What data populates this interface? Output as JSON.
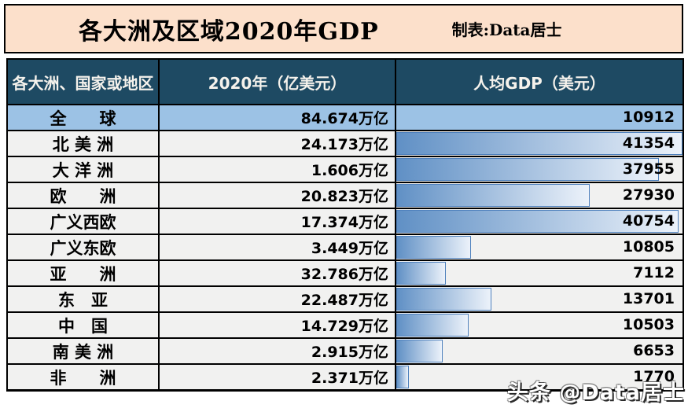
{
  "banner": {
    "title": "各大洲及区域2020年GDP",
    "credit": "制表:Data居士"
  },
  "watermark": "头条 @Data居士",
  "colors": {
    "banner_bg": "#FCE0CB",
    "table_header_bg": "#1E4A63",
    "table_header_text": "#F5F2EC",
    "row_bg": "#F1F1F0",
    "highlight_row_bg": "#9CC2E5",
    "bar_gradient_start": "#6090C5",
    "bar_gradient_end": "#ECF2FA",
    "bar_border": "#4F81BD"
  },
  "chart_data": {
    "type": "table",
    "title": "各大洲及区域2020年GDP",
    "columns": [
      "各大洲、国家或地区",
      "2020年（亿美元）",
      "人均GDP（美元）"
    ],
    "bar_column": "人均GDP（美元）",
    "bar_max": 41354,
    "rows": [
      {
        "region": "全球",
        "region_display": "全　　球",
        "gdp": "84.674万亿",
        "per_capita": 10912,
        "highlight": true,
        "show_bar": false
      },
      {
        "region": "北美洲",
        "region_display": "北 美 洲",
        "gdp": "24.173万亿",
        "per_capita": 41354,
        "highlight": false,
        "show_bar": true
      },
      {
        "region": "大洋洲",
        "region_display": "大 洋 洲",
        "gdp": "1.606万亿",
        "per_capita": 37955,
        "highlight": false,
        "show_bar": true
      },
      {
        "region": "欧洲",
        "region_display": "欧　　洲",
        "gdp": "20.823万亿",
        "per_capita": 27930,
        "highlight": false,
        "show_bar": true
      },
      {
        "region": "广义西欧",
        "region_display": "广义西欧",
        "gdp": "17.374万亿",
        "per_capita": 40754,
        "highlight": false,
        "show_bar": true
      },
      {
        "region": "广义东欧",
        "region_display": "广义东欧",
        "gdp": "3.449万亿",
        "per_capita": 10805,
        "highlight": false,
        "show_bar": true
      },
      {
        "region": "亚洲",
        "region_display": "亚　　洲",
        "gdp": "32.786万亿",
        "per_capita": 7112,
        "highlight": false,
        "show_bar": true
      },
      {
        "region": "东亚",
        "region_display": "东　亚",
        "gdp": "22.487万亿",
        "per_capita": 13701,
        "highlight": false,
        "show_bar": true
      },
      {
        "region": "中国",
        "region_display": "中　国",
        "gdp": "14.729万亿",
        "per_capita": 10503,
        "highlight": false,
        "show_bar": true
      },
      {
        "region": "南美洲",
        "region_display": "南 美 洲",
        "gdp": "2.915万亿",
        "per_capita": 6653,
        "highlight": false,
        "show_bar": true
      },
      {
        "region": "非洲",
        "region_display": "非　　洲",
        "gdp": "2.371万亿",
        "per_capita": 1770,
        "highlight": false,
        "show_bar": true
      }
    ]
  }
}
